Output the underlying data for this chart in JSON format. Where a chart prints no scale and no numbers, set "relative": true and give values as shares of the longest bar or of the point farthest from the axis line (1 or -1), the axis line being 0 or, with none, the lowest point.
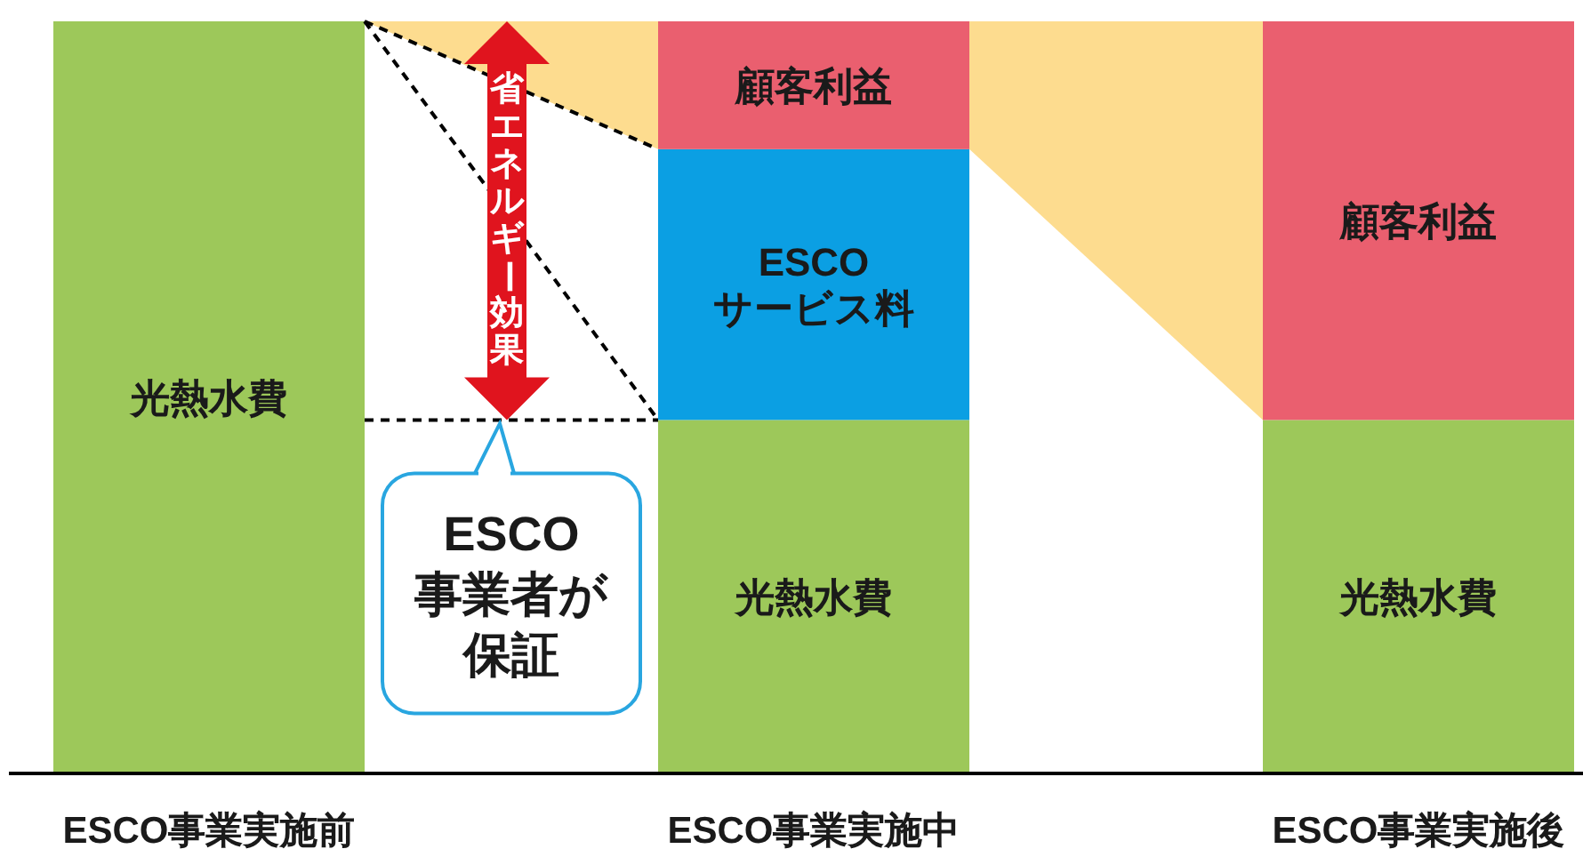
{
  "chart_data": {
    "type": "bar",
    "stacked": true,
    "relative": true,
    "categories": [
      "ESCO事業実施前",
      "ESCO事業実施中",
      "ESCO事業実施後"
    ],
    "series": [
      {
        "name": "光熱水費",
        "color": "#9dc85a",
        "values": [
          1,
          0.47,
          0.47
        ]
      },
      {
        "name": "ESCOサービス料",
        "color": "#0b9fe3",
        "values": [
          null,
          0.36,
          null
        ]
      },
      {
        "name": "顧客利益",
        "color": "#ea5f6f",
        "values": [
          null,
          0.17,
          0.53
        ]
      }
    ],
    "annotations": [
      "省エネルギー効果",
      "ESCO事業者が保証"
    ]
  }
}
